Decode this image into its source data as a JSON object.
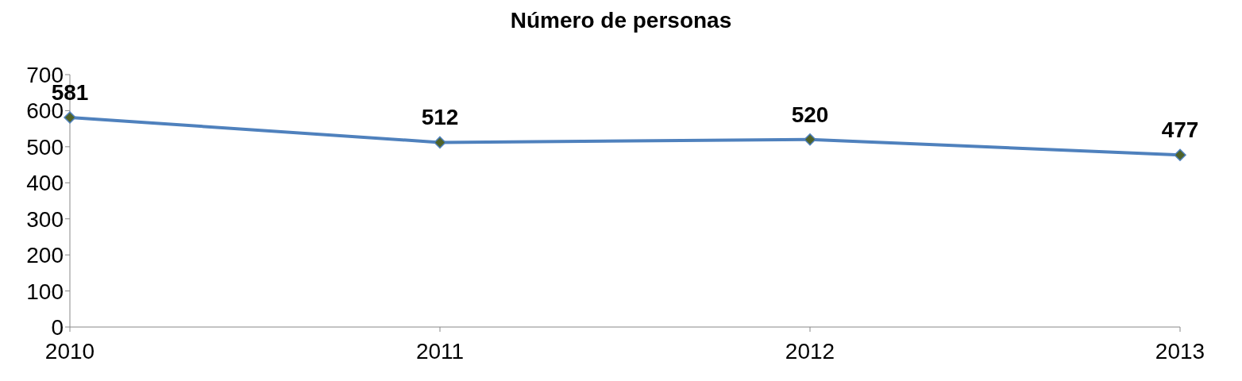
{
  "chart_data": {
    "type": "line",
    "title": "Número de personas",
    "categories": [
      "2010",
      "2011",
      "2012",
      "2013"
    ],
    "series": [
      {
        "color": "#4f81bd",
        "values": [
          581,
          512,
          520,
          477
        ]
      }
    ],
    "ylim": [
      0,
      700
    ],
    "yticks": [
      0,
      100,
      200,
      300,
      400,
      500,
      600,
      700
    ],
    "grid": false,
    "legend": false,
    "marker": "diamond",
    "data_labels": true
  }
}
